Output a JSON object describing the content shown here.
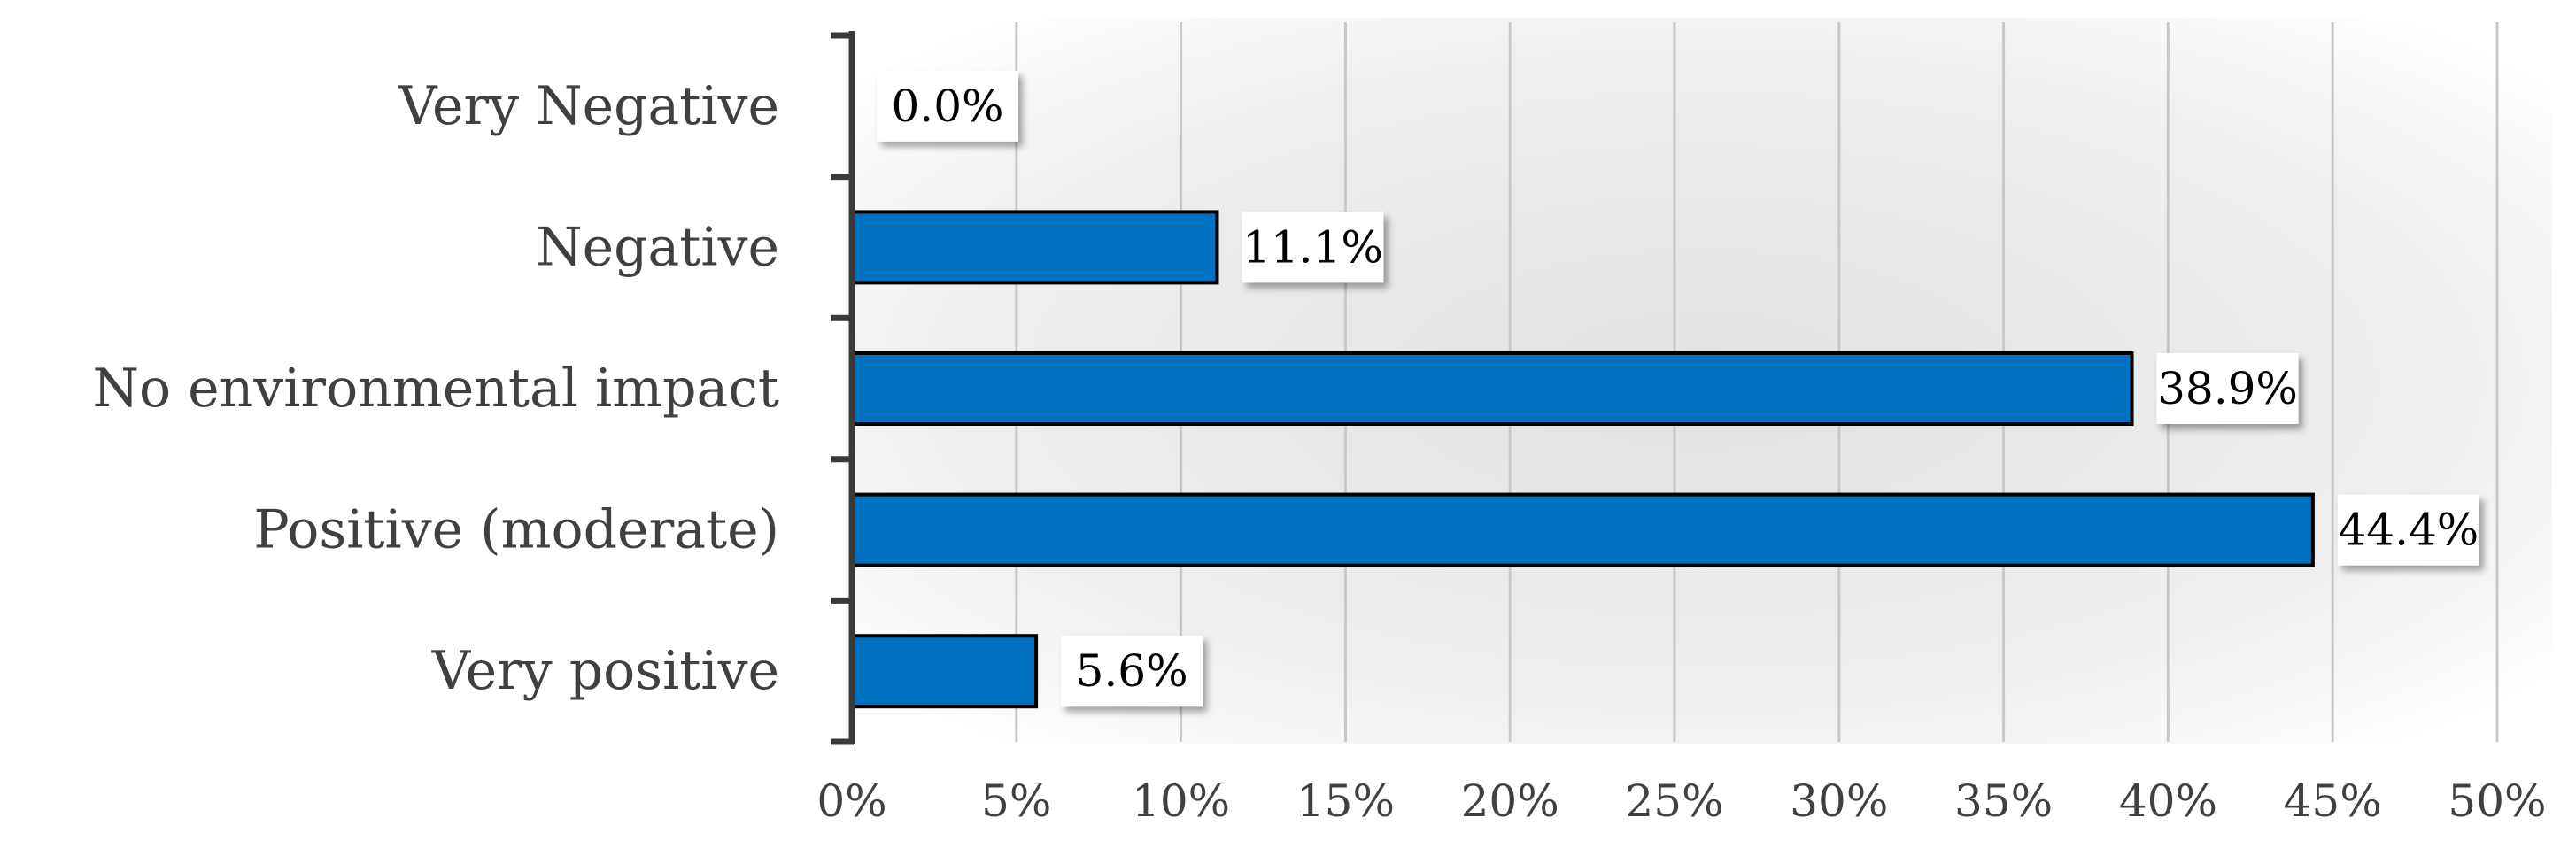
{
  "chart_data": {
    "type": "bar",
    "orientation": "horizontal",
    "categories": [
      "Very Negative",
      "Negative",
      "No environmental impact",
      "Positive (moderate)",
      "Very positive"
    ],
    "values": [
      0.0,
      11.1,
      38.9,
      44.4,
      5.6
    ],
    "value_labels": [
      "0.0%",
      "11.1%",
      "38.9%",
      "44.4%",
      "5.6%"
    ],
    "x_ticks": [
      "0%",
      "5%",
      "10%",
      "15%",
      "20%",
      "25%",
      "30%",
      "35%",
      "40%",
      "45%",
      "50%"
    ],
    "xlim": [
      0,
      50
    ],
    "grid": "vertical",
    "title": "",
    "xlabel": "",
    "ylabel": ""
  },
  "colors": {
    "bar": "#0070c0",
    "bar_border": "#000000",
    "plot_background": "#e6e6e6"
  }
}
